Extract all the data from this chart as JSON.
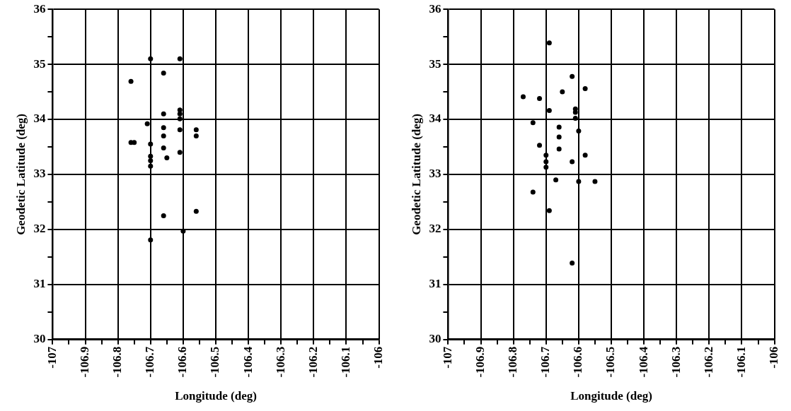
{
  "chart_data": [
    {
      "type": "scatter",
      "xlabel": "Longitude (deg)",
      "ylabel": "Geodetic Latitude (deg)",
      "color": "#000000",
      "marker": "circle",
      "grid": true,
      "x": [
        -106.7,
        -106.61,
        -106.66,
        -106.76,
        -106.66,
        -106.61,
        -106.61,
        -106.61,
        -106.71,
        -106.66,
        -106.61,
        -106.56,
        -106.56,
        -106.66,
        -106.75,
        -106.76,
        -106.7,
        -106.66,
        -106.61,
        -106.65,
        -106.7,
        -106.7,
        -106.7,
        -106.66,
        -106.56,
        -106.6,
        -106.7
      ],
      "values": [
        35.1,
        35.1,
        34.84,
        34.69,
        34.1,
        34.17,
        34.1,
        34.01,
        33.92,
        33.85,
        33.81,
        33.81,
        33.7,
        33.7,
        33.58,
        33.58,
        33.55,
        33.48,
        33.4,
        33.3,
        33.33,
        33.25,
        33.15,
        32.25,
        32.33,
        31.97,
        31.81
      ],
      "xlim": [
        -107,
        -106
      ],
      "ylim": [
        30,
        36
      ],
      "xticks": [
        -107,
        {
          "value": -106.95,
          "label": null
        },
        -106.9,
        {
          "value": -106.85,
          "label": null
        },
        -106.8,
        {
          "value": -106.75,
          "label": null
        },
        -106.7,
        {
          "value": -106.65,
          "label": null
        },
        -106.6,
        {
          "value": -106.55,
          "label": null
        },
        -106.5,
        {
          "value": -106.45,
          "label": null
        },
        -106.4,
        {
          "value": -106.35,
          "label": null
        },
        -106.3,
        {
          "value": -106.25,
          "label": null
        },
        -106.2,
        {
          "value": -106.15,
          "label": null
        },
        -106.1,
        {
          "value": -106.05,
          "label": null
        },
        -106
      ],
      "yticks": [
        30,
        {
          "value": 30.5,
          "label": null
        },
        31,
        {
          "value": 31.5,
          "label": null
        },
        32,
        {
          "value": 32.5,
          "label": null
        },
        33,
        {
          "value": 33.5,
          "label": null
        },
        34,
        {
          "value": 34.5,
          "label": null
        },
        35,
        {
          "value": 35.5,
          "label": null
        },
        36
      ]
    },
    {
      "type": "scatter",
      "xlabel": "Longitude (deg)",
      "ylabel": "Geodetic Latitude (deg)",
      "color": "#000000",
      "marker": "circle",
      "grid": true,
      "x": [
        -106.69,
        -106.62,
        -106.58,
        -106.65,
        -106.77,
        -106.72,
        -106.69,
        -106.61,
        -106.61,
        -106.61,
        -106.74,
        -106.66,
        -106.6,
        -106.66,
        -106.72,
        -106.66,
        -106.58,
        -106.7,
        -106.7,
        -106.7,
        -106.62,
        -106.67,
        -106.6,
        -106.55,
        -106.74,
        -106.69,
        -106.62
      ],
      "values": [
        35.39,
        34.78,
        34.56,
        34.5,
        34.41,
        34.38,
        34.16,
        34.19,
        34.13,
        34.02,
        33.94,
        33.86,
        33.79,
        33.68,
        33.53,
        33.46,
        33.35,
        33.35,
        33.23,
        33.13,
        33.23,
        32.9,
        32.87,
        32.87,
        32.68,
        32.34,
        31.39
      ],
      "xlim": [
        -107,
        -106
      ],
      "ylim": [
        30,
        36
      ],
      "xticks": [
        -107,
        {
          "value": -106.95,
          "label": null
        },
        -106.9,
        {
          "value": -106.85,
          "label": null
        },
        -106.8,
        {
          "value": -106.75,
          "label": null
        },
        -106.7,
        {
          "value": -106.65,
          "label": null
        },
        -106.6,
        {
          "value": -106.55,
          "label": null
        },
        -106.5,
        {
          "value": -106.45,
          "label": null
        },
        -106.4,
        {
          "value": -106.35,
          "label": null
        },
        -106.3,
        {
          "value": -106.25,
          "label": null
        },
        -106.2,
        {
          "value": -106.15,
          "label": null
        },
        -106.1,
        {
          "value": -106.05,
          "label": null
        },
        -106
      ],
      "yticks": [
        30,
        {
          "value": 30.5,
          "label": null
        },
        31,
        {
          "value": 31.5,
          "label": null
        },
        32,
        {
          "value": 32.5,
          "label": null
        },
        33,
        {
          "value": 33.5,
          "label": null
        },
        34,
        {
          "value": 34.5,
          "label": null
        },
        35,
        {
          "value": 35.5,
          "label": null
        },
        36
      ]
    }
  ]
}
